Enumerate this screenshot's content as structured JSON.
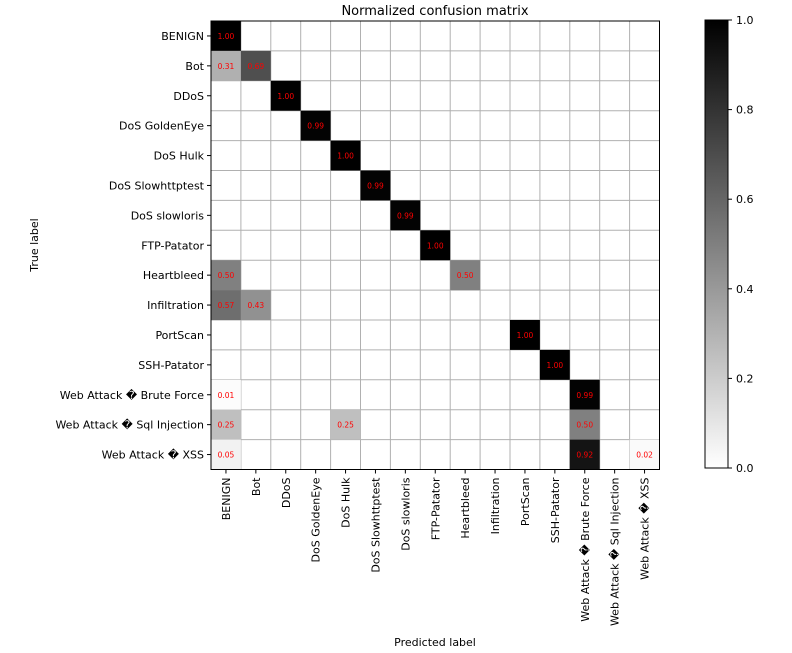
{
  "chart_data": {
    "type": "heatmap",
    "title": "Normalized confusion matrix",
    "xlabel": "Predicted label",
    "ylabel": "True label",
    "labels": [
      "BENIGN",
      "Bot",
      "DDoS",
      "DoS GoldenEye",
      "DoS Hulk",
      "DoS Slowhttptest",
      "DoS slowloris",
      "FTP-Patator",
      "Heartbleed",
      "Infiltration",
      "PortScan",
      "SSH-Patator",
      "Web Attack � Brute Force",
      "Web Attack � Sql Injection",
      "Web Attack � XSS"
    ],
    "cells": [
      {
        "row": 0,
        "col": 0,
        "value": 1.0,
        "label": "1.00"
      },
      {
        "row": 1,
        "col": 0,
        "value": 0.31,
        "label": "0.31"
      },
      {
        "row": 1,
        "col": 1,
        "value": 0.69,
        "label": "0.69"
      },
      {
        "row": 2,
        "col": 2,
        "value": 1.0,
        "label": "1.00"
      },
      {
        "row": 3,
        "col": 3,
        "value": 0.99,
        "label": "0.99"
      },
      {
        "row": 4,
        "col": 4,
        "value": 1.0,
        "label": "1.00"
      },
      {
        "row": 5,
        "col": 5,
        "value": 0.99,
        "label": "0.99"
      },
      {
        "row": 6,
        "col": 6,
        "value": 0.99,
        "label": "0.99"
      },
      {
        "row": 7,
        "col": 7,
        "value": 1.0,
        "label": "1.00"
      },
      {
        "row": 8,
        "col": 0,
        "value": 0.5,
        "label": "0.50"
      },
      {
        "row": 8,
        "col": 8,
        "value": 0.5,
        "label": "0.50"
      },
      {
        "row": 9,
        "col": 0,
        "value": 0.57,
        "label": "0.57"
      },
      {
        "row": 9,
        "col": 1,
        "value": 0.43,
        "label": "0.43"
      },
      {
        "row": 10,
        "col": 10,
        "value": 1.0,
        "label": "1.00"
      },
      {
        "row": 11,
        "col": 11,
        "value": 1.0,
        "label": "1.00"
      },
      {
        "row": 12,
        "col": 0,
        "value": 0.01,
        "label": "0.01"
      },
      {
        "row": 12,
        "col": 12,
        "value": 0.99,
        "label": "0.99"
      },
      {
        "row": 13,
        "col": 0,
        "value": 0.25,
        "label": "0.25"
      },
      {
        "row": 13,
        "col": 4,
        "value": 0.25,
        "label": "0.25"
      },
      {
        "row": 13,
        "col": 12,
        "value": 0.5,
        "label": "0.50"
      },
      {
        "row": 14,
        "col": 0,
        "value": 0.05,
        "label": "0.05"
      },
      {
        "row": 14,
        "col": 12,
        "value": 0.92,
        "label": "0.92"
      },
      {
        "row": 14,
        "col": 14,
        "value": 0.02,
        "label": "0.02"
      }
    ],
    "colorbar": {
      "range": [
        0.0,
        1.0
      ],
      "ticks": [
        "0.0",
        "0.2",
        "0.4",
        "0.6",
        "0.8",
        "1.0"
      ],
      "colormap": "Greys"
    },
    "colors": {
      "cell_text": "#ff0000",
      "grid": "#b0b0b0",
      "frame": "#000000"
    }
  }
}
